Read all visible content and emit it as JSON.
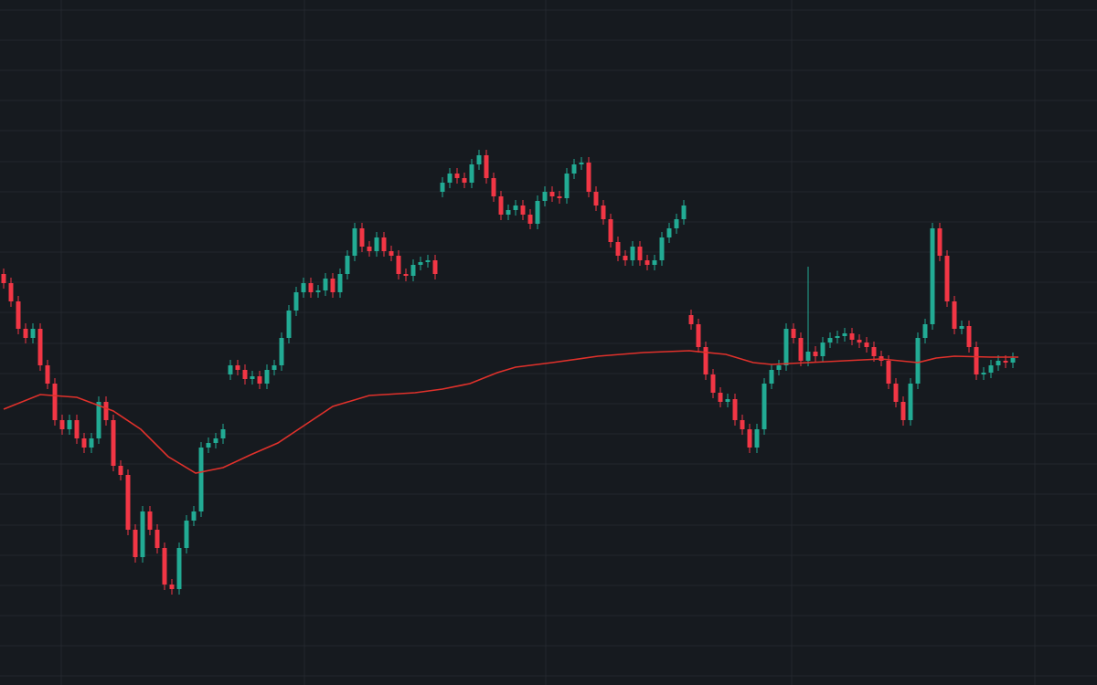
{
  "chart_data": {
    "type": "candlestick",
    "grid": true,
    "background": "#161a1f",
    "grid_color": "#23272e",
    "up_color": "#22ab94",
    "down_color": "#f23645",
    "xlim": [
      -0.5,
      149.5
    ],
    "ylim": [
      0,
      750
    ],
    "xticks": [
      7.875,
      41.125,
      74.125,
      107.75,
      141
    ],
    "yticks": [
      10,
      43,
      76,
      109,
      142,
      175,
      209,
      242,
      275,
      308,
      341,
      374,
      408,
      441,
      474,
      507,
      540,
      573,
      607,
      640,
      673,
      706,
      739
    ],
    "open": [
      450,
      440,
      420,
      390,
      380,
      390,
      350,
      330,
      290,
      280,
      290,
      270,
      260,
      270,
      310,
      290,
      240,
      230,
      170,
      140,
      190,
      170,
      150,
      110,
      105,
      150,
      180,
      190,
      260,
      265,
      270,
      340,
      350,
      345,
      335,
      338,
      330,
      345,
      350,
      380,
      410,
      430,
      440,
      430,
      432,
      445,
      430,
      450,
      470,
      500,
      480,
      475,
      490,
      475,
      470,
      450,
      448,
      460,
      463,
      465,
      540,
      550,
      560,
      555,
      550,
      570,
      580,
      555,
      535,
      515,
      520,
      525,
      515,
      505,
      530,
      540,
      535,
      533,
      560,
      570,
      572,
      540,
      525,
      510,
      485,
      470,
      465,
      480,
      465,
      460,
      465,
      490,
      500,
      510,
      405,
      395,
      370,
      340,
      320,
      310,
      313,
      290,
      280,
      260,
      280,
      330,
      345,
      350,
      390,
      380,
      355,
      365,
      360,
      375,
      380,
      382,
      385,
      378,
      375,
      370,
      360,
      355,
      330,
      310,
      290,
      330,
      380,
      395,
      500,
      470,
      420,
      390,
      393,
      370,
      340,
      342,
      350,
      355,
      353
    ],
    "high": [
      456,
      446,
      426,
      396,
      396,
      396,
      356,
      336,
      296,
      296,
      296,
      276,
      276,
      316,
      316,
      296,
      246,
      236,
      176,
      196,
      196,
      176,
      156,
      116,
      156,
      186,
      196,
      266,
      271,
      276,
      286,
      356,
      356,
      351,
      344,
      344,
      351,
      356,
      386,
      416,
      436,
      446,
      446,
      438,
      451,
      451,
      456,
      476,
      506,
      506,
      486,
      496,
      496,
      481,
      476,
      456,
      466,
      469,
      471,
      471,
      556,
      566,
      566,
      561,
      576,
      586,
      586,
      561,
      541,
      526,
      531,
      531,
      521,
      536,
      546,
      546,
      541,
      566,
      576,
      578,
      578,
      546,
      531,
      516,
      491,
      476,
      486,
      486,
      471,
      471,
      496,
      506,
      516,
      531,
      411,
      401,
      376,
      346,
      326,
      319,
      319,
      296,
      286,
      286,
      336,
      351,
      356,
      396,
      396,
      386,
      458,
      371,
      381,
      386,
      388,
      391,
      391,
      384,
      381,
      376,
      366,
      361,
      336,
      316,
      336,
      386,
      401,
      506,
      506,
      476,
      426,
      399,
      399,
      376,
      348,
      356,
      361,
      361,
      364
    ],
    "low": [
      434,
      414,
      384,
      374,
      374,
      344,
      324,
      284,
      274,
      274,
      264,
      254,
      254,
      264,
      284,
      234,
      224,
      164,
      134,
      134,
      164,
      144,
      104,
      99,
      99,
      144,
      174,
      184,
      254,
      259,
      264,
      334,
      339,
      329,
      329,
      324,
      324,
      339,
      344,
      374,
      404,
      424,
      424,
      424,
      426,
      424,
      424,
      444,
      464,
      474,
      469,
      469,
      469,
      464,
      444,
      442,
      442,
      454,
      457,
      444,
      534,
      544,
      549,
      544,
      544,
      564,
      549,
      529,
      509,
      509,
      514,
      509,
      499,
      499,
      524,
      529,
      527,
      527,
      554,
      564,
      534,
      519,
      504,
      479,
      464,
      459,
      459,
      459,
      454,
      454,
      459,
      484,
      494,
      504,
      389,
      364,
      334,
      314,
      304,
      304,
      284,
      274,
      254,
      254,
      274,
      324,
      339,
      344,
      374,
      349,
      349,
      354,
      354,
      369,
      374,
      376,
      372,
      369,
      364,
      354,
      349,
      324,
      304,
      284,
      284,
      324,
      374,
      389,
      464,
      414,
      384,
      384,
      364,
      334,
      334,
      336,
      344,
      347,
      347
    ],
    "close": [
      440,
      420,
      390,
      380,
      390,
      350,
      330,
      290,
      280,
      290,
      270,
      260,
      270,
      310,
      290,
      240,
      230,
      170,
      140,
      190,
      170,
      150,
      110,
      105,
      150,
      180,
      190,
      260,
      265,
      270,
      280,
      350,
      345,
      335,
      338,
      330,
      345,
      350,
      380,
      410,
      430,
      440,
      430,
      432,
      445,
      430,
      450,
      470,
      500,
      480,
      475,
      490,
      475,
      470,
      450,
      448,
      460,
      463,
      465,
      450,
      550,
      560,
      555,
      550,
      570,
      580,
      555,
      535,
      515,
      520,
      525,
      515,
      505,
      530,
      540,
      535,
      533,
      560,
      570,
      572,
      540,
      525,
      510,
      485,
      470,
      465,
      480,
      465,
      460,
      465,
      490,
      500,
      510,
      525,
      395,
      370,
      340,
      320,
      310,
      313,
      290,
      280,
      260,
      280,
      330,
      345,
      350,
      390,
      380,
      355,
      365,
      360,
      375,
      380,
      382,
      385,
      378,
      375,
      370,
      360,
      355,
      330,
      310,
      290,
      330,
      380,
      395,
      500,
      470,
      420,
      390,
      393,
      370,
      340,
      342,
      350,
      355,
      353,
      358
    ],
    "moving_average": {
      "color": "#e0312b",
      "x": [
        0,
        5,
        10,
        15,
        18.75,
        22.5,
        26.25,
        30,
        33.75,
        37.5,
        41.25,
        45,
        50,
        56.25,
        60,
        63.75,
        67.5,
        70,
        75,
        81.25,
        87.5,
        93.75,
        98.75,
        102.5,
        105,
        110,
        115,
        120,
        125,
        127.5,
        130,
        135,
        138.75
      ],
      "values": [
        302,
        318,
        315,
        300,
        280,
        250,
        232,
        238,
        252,
        265,
        285,
        305,
        317,
        320,
        324,
        330,
        342,
        348,
        353,
        360,
        364,
        366,
        362,
        353,
        351,
        353,
        355,
        357,
        353,
        358,
        360,
        359,
        359
      ]
    }
  }
}
